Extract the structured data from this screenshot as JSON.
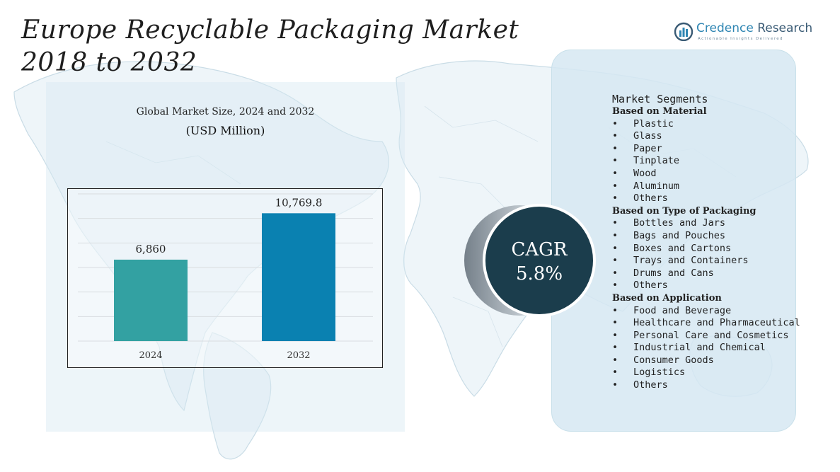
{
  "title": {
    "line1": "Europe Recyclable Packaging Market",
    "line2": "2018 to 2032"
  },
  "logo": {
    "name_part1": "Credence",
    "name_part2": "Research",
    "tagline": "Actionable Insights Delivered"
  },
  "chart": {
    "title": "Global Market Size, 2024 and 2032",
    "subtitle": "(USD Million)"
  },
  "chart_data": {
    "type": "bar",
    "title": "Global Market Size, 2024 and 2032",
    "subtitle": "(USD Million)",
    "categories": [
      "2024",
      "2032"
    ],
    "values": [
      6860,
      10769.8
    ],
    "value_labels": [
      "6,860",
      "10,769.8"
    ],
    "bar_colors": [
      "#33a1a2",
      "#0a81b1"
    ],
    "ylim": [
      0,
      12400
    ],
    "grid": true,
    "legend": "none"
  },
  "cagr": {
    "label": "CAGR",
    "value": "5.8%"
  },
  "segments": {
    "title": "Market Segments",
    "groups": [
      {
        "heading": "Based on Material",
        "items": [
          "Plastic",
          "Glass",
          "Paper",
          "Tinplate",
          "Wood",
          "Aluminum",
          "Others"
        ]
      },
      {
        "heading": "Based on Type of Packaging",
        "items": [
          "Bottles and Jars",
          "Bags and Pouches",
          "Boxes and Cartons",
          "Trays and Containers",
          "Drums and Cans",
          "Others"
        ]
      },
      {
        "heading": "Based on Application",
        "items": [
          "Food and Beverage",
          "Healthcare and Pharmaceutical",
          "Personal Care and Cosmetics",
          "Industrial and Chemical",
          "Consumer Goods",
          "Logistics",
          "Others"
        ]
      }
    ],
    "bullet": "•"
  },
  "colors": {
    "cagr_circle": "#1b3d4c",
    "ring": "#8e99a3",
    "panel": "#d6e8f2",
    "logo_blue": "#2f86b3"
  },
  "icons": {
    "logo": "bar-chart-circle-icon",
    "background": "world-map"
  }
}
